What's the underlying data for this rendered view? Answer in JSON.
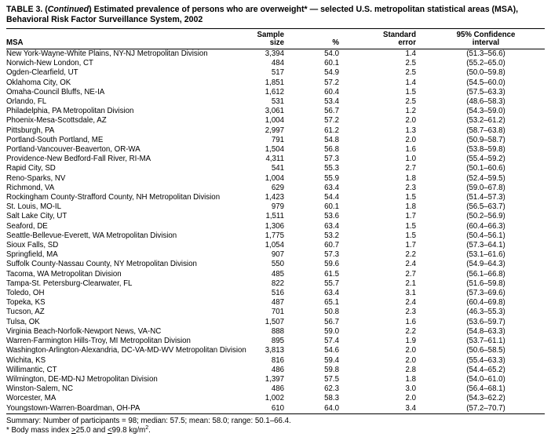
{
  "page": {
    "title": {
      "part1": "TABLE 3. (",
      "continued": "Continued",
      "part2": ") Estimated prevalence of persons who are overweight* — selected U.S. metropolitan statistical areas (MSA), Behavioral Risk Factor Surveillance System, 2002"
    }
  },
  "table": {
    "headers": {
      "msa": "MSA",
      "sample": [
        "Sample",
        "size"
      ],
      "percent": "%",
      "stderr": [
        "Standard",
        "error"
      ],
      "ci": [
        "95% Confidence",
        "interval"
      ]
    },
    "rows": [
      [
        "New York-Wayne-White Plains, NY-NJ Metropolitan Division",
        "3,394",
        "54.0",
        "1.4",
        "(51.3–56.6)"
      ],
      [
        "Norwich-New London, CT",
        "484",
        "60.1",
        "2.5",
        "(55.2–65.0)"
      ],
      [
        "Ogden-Clearfield, UT",
        "517",
        "54.9",
        "2.5",
        "(50.0–59.8)"
      ],
      [
        "Oklahoma City, OK",
        "1,851",
        "57.2",
        "1.4",
        "(54.5–60.0)"
      ],
      [
        "Omaha-Council Bluffs, NE-IA",
        "1,612",
        "60.4",
        "1.5",
        "(57.5–63.3)"
      ],
      [
        "Orlando, FL",
        "531",
        "53.4",
        "2.5",
        "(48.6–58.3)"
      ],
      [
        "Philadelphia, PA Metropolitan Division",
        "3,061",
        "56.7",
        "1.2",
        "(54.3–59.0)"
      ],
      [
        "Phoenix-Mesa-Scottsdale, AZ",
        "1,004",
        "57.2",
        "2.0",
        "(53.2–61.2)"
      ],
      [
        "Pittsburgh, PA",
        "2,997",
        "61.2",
        "1.3",
        "(58.7–63.8)"
      ],
      [
        "Portland-South Portland, ME",
        "791",
        "54.8",
        "2.0",
        "(50.9–58.7)"
      ],
      [
        "Portland-Vancouver-Beaverton, OR-WA",
        "1,504",
        "56.8",
        "1.6",
        "(53.8–59.8)"
      ],
      [
        "Providence-New Bedford-Fall River, RI-MA",
        "4,311",
        "57.3",
        "1.0",
        "(55.4–59.2)"
      ],
      [
        "Rapid City, SD",
        "541",
        "55.3",
        "2.7",
        "(50.1–60.6)"
      ],
      [
        "Reno-Sparks, NV",
        "1,004",
        "55.9",
        "1.8",
        "(52.4–59.5)"
      ],
      [
        "Richmond, VA",
        "629",
        "63.4",
        "2.3",
        "(59.0–67.8)"
      ],
      [
        "Rockingham County-Strafford County, NH Metropolitan Division",
        "1,423",
        "54.4",
        "1.5",
        "(51.4–57.3)"
      ],
      [
        "St. Louis, MO-IL",
        "979",
        "60.1",
        "1.8",
        "(56.5–63.7)"
      ],
      [
        "Salt Lake City, UT",
        "1,511",
        "53.6",
        "1.7",
        "(50.2–56.9)"
      ],
      [
        "Seaford, DE",
        "1,306",
        "63.4",
        "1.5",
        "(60.4–66.3)"
      ],
      [
        "Seattle-Bellevue-Everett, WA Metropolitan Division",
        "1,775",
        "53.2",
        "1.5",
        "(50.4–56.1)"
      ],
      [
        "Sioux Falls, SD",
        "1,054",
        "60.7",
        "1.7",
        "(57.3–64.1)"
      ],
      [
        "Springfield, MA",
        "907",
        "57.3",
        "2.2",
        "(53.1–61.6)"
      ],
      [
        "Suffolk County-Nassau County, NY Metropolitan Division",
        "550",
        "59.6",
        "2.4",
        "(54.9–64.3)"
      ],
      [
        "Tacoma, WA Metropolitan Division",
        "485",
        "61.5",
        "2.7",
        "(56.1–66.8)"
      ],
      [
        "Tampa-St. Petersburg-Clearwater, FL",
        "822",
        "55.7",
        "2.1",
        "(51.6–59.8)"
      ],
      [
        "Toledo, OH",
        "516",
        "63.4",
        "3.1",
        "(57.3–69.6)"
      ],
      [
        "Topeka, KS",
        "487",
        "65.1",
        "2.4",
        "(60.4–69.8)"
      ],
      [
        "Tucson, AZ",
        "701",
        "50.8",
        "2.3",
        "(46.3–55.3)"
      ],
      [
        "Tulsa, OK",
        "1,507",
        "56.7",
        "1.6",
        "(53.6–59.7)"
      ],
      [
        "Virginia Beach-Norfolk-Newport News, VA-NC",
        "888",
        "59.0",
        "2.2",
        "(54.8–63.3)"
      ],
      [
        "Warren-Farmington Hills-Troy, MI Metropolitan Division",
        "895",
        "57.4",
        "1.9",
        "(53.7–61.1)"
      ],
      [
        "Washington-Arlington-Alexandria, DC-VA-MD-WV Metropolitan Division",
        "3,813",
        "54.6",
        "2.0",
        "(50.6–58.5)"
      ],
      [
        "Wichita, KS",
        "816",
        "59.4",
        "2.0",
        "(55.4–63.3)"
      ],
      [
        "Willimantic, CT",
        "486",
        "59.8",
        "2.8",
        "(54.4–65.2)"
      ],
      [
        "Wilmington, DE-MD-NJ Metropolitan Division",
        "1,397",
        "57.5",
        "1.8",
        "(54.0–61.0)"
      ],
      [
        "Winston-Salem, NC",
        "486",
        "62.3",
        "3.0",
        "(56.4–68.1)"
      ],
      [
        "Worcester, MA",
        "1,002",
        "58.3",
        "2.0",
        "(54.3–62.2)"
      ],
      [
        "Youngstown-Warren-Boardman, OH-PA",
        "610",
        "64.0",
        "3.4",
        "(57.2–70.7)"
      ]
    ]
  },
  "footnotes": {
    "summary": "Summary: Number of participants = 98; median: 57.5; mean: 58.0; range: 50.1–66.4.",
    "bmi": {
      "prefix": "* Body mass index ",
      "gte": ">",
      "mid1": "25.0 and ",
      "lte": "<",
      "mid2": "99.8 kg/m",
      "sup": "2",
      "suffix": "."
    }
  }
}
